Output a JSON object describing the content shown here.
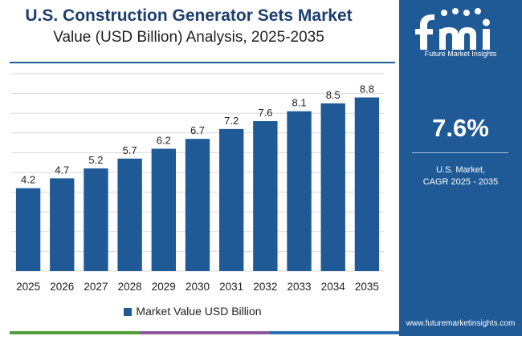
{
  "header": {
    "title": "U.S. Construction Generator Sets Market",
    "subtitle": "Value (USD Billion) Analysis, 2025-2035"
  },
  "sidebar": {
    "logo_text": "Future Market Insights",
    "cagr_value": "7.6%",
    "cagr_line1": "U.S. Market,",
    "cagr_line2": "CAGR 2025 - 2035",
    "url": "www.futuremarketinsights.com",
    "background_color": "#1f5a96"
  },
  "chart_data": {
    "type": "bar",
    "categories": [
      "2025",
      "2026",
      "2027",
      "2028",
      "2029",
      "2030",
      "2031",
      "2032",
      "2033",
      "2034",
      "2035"
    ],
    "series": [
      {
        "name": "Market Value USD Billion",
        "values": [
          4.2,
          4.7,
          5.2,
          5.7,
          6.2,
          6.7,
          7.2,
          7.6,
          8.1,
          8.5,
          8.8
        ],
        "color": "#1f5a96"
      }
    ],
    "data_labels": [
      "4.2",
      "4.7",
      "5.2",
      "5.7",
      "6.2",
      "6.7",
      "7.2",
      "7.6",
      "8.1",
      "8.5",
      "8.8"
    ],
    "ylim": [
      0,
      10
    ],
    "grid": true,
    "legend_placement": "bottom-center",
    "gridline_color": "#d8d8d8",
    "bar_color": "#1f5a96"
  },
  "footer_colors": [
    "#4f9e3a",
    "#8a5a9e",
    "#2a6fb0"
  ]
}
